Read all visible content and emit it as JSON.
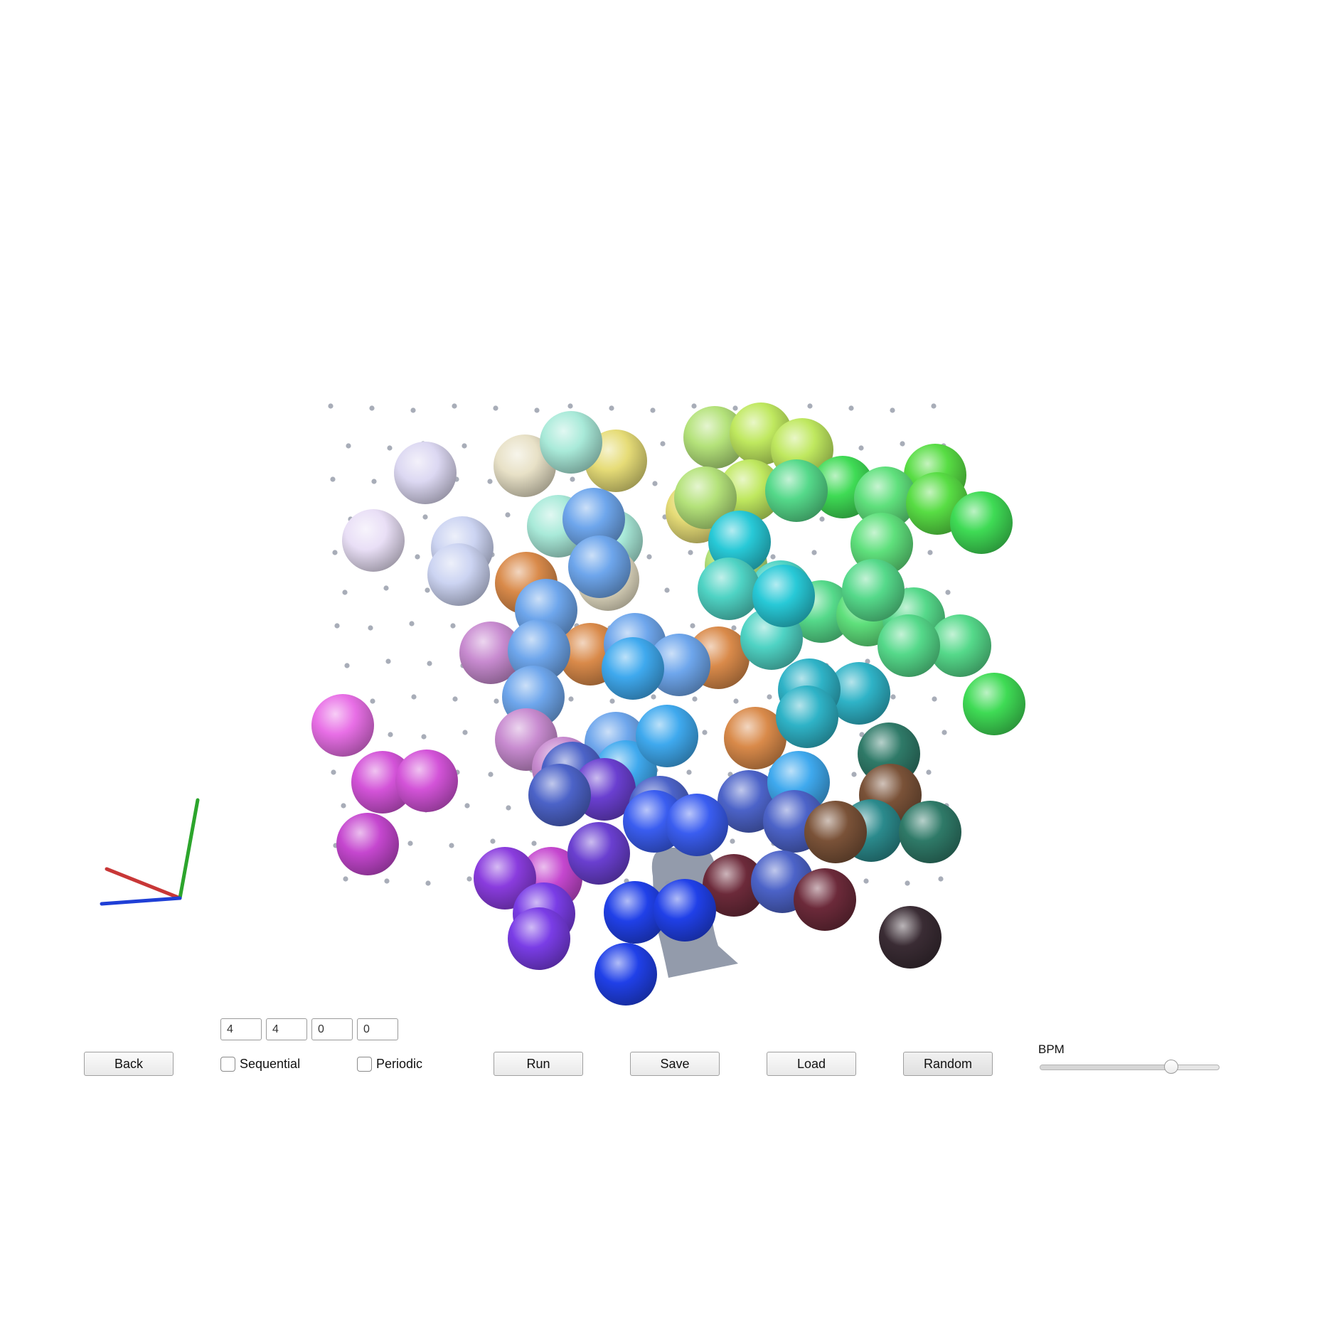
{
  "sequence_inputs": [
    "4",
    "4",
    "0",
    "0"
  ],
  "buttons": {
    "back": "Back",
    "run": "Run",
    "save": "Save",
    "load": "Load",
    "random": "Random"
  },
  "options": {
    "sequential": {
      "label": "Sequential",
      "checked": false
    },
    "periodic": {
      "label": "Periodic",
      "checked": false
    }
  },
  "bpm": {
    "label": "BPM",
    "level_fraction": 0.73
  },
  "scene": {
    "axis_colors": {
      "x": "#c83737",
      "y": "#2ca52c",
      "z": "#1f3fd6"
    },
    "sphere_colors_by_region": {
      "top_left": [
        "#dcd8f2",
        "#e9dff6",
        "#ccd4f2",
        "#e8e1c7"
      ],
      "top_center": [
        "#a9ead9",
        "#e6dc77",
        "#8fe8d8",
        "#b4e27a",
        "#bfe85f"
      ],
      "top_right": [
        "#5fe07c",
        "#55d98a",
        "#58dd44",
        "#3fdb55"
      ],
      "middle": [
        "#28c9d7",
        "#3fa9ee",
        "#6ea6ec",
        "#4fd3c4",
        "#2fb3c7",
        "#d98a4a"
      ],
      "left": [
        "#d57ad3",
        "#e86fe6",
        "#d353d8",
        "#c547cf",
        "#c88bd0"
      ],
      "bottom": [
        "#8a3cde",
        "#7a3de6",
        "#3a5df0",
        "#2040e8",
        "#4c63c8",
        "#6a3fd0"
      ],
      "bottom_right": [
        "#2b8a8c",
        "#2f7a68",
        "#7b3640",
        "#6c2a3a",
        "#3a2c34",
        "#7a5238"
      ]
    },
    "lattice_point_color": "#a8adb8",
    "center_figure_color": "#8d96a6"
  }
}
